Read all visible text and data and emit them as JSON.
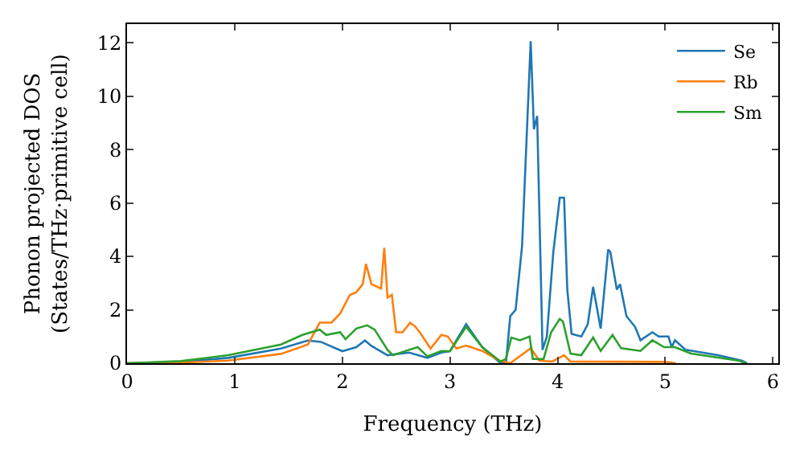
{
  "chart_data": {
    "type": "line",
    "xlabel": "Frequency (THz)",
    "ylabel": "Phonon projected DOS\n(States/THz·primitive cell)",
    "xlim": [
      0,
      6.05
    ],
    "ylim": [
      0,
      12.7
    ],
    "xticks": [
      0,
      1,
      2,
      3,
      4,
      5,
      6
    ],
    "yticks": [
      0,
      2,
      4,
      6,
      8,
      10,
      12
    ],
    "grid": false,
    "legend": "top right",
    "marker": "none",
    "line_style": "solid",
    "series": [
      {
        "name": "Se",
        "color": "#1f77b4",
        "x": [
          0,
          0.5,
          0.94,
          1.43,
          1.68,
          1.8,
          2.0,
          2.13,
          2.21,
          2.27,
          2.42,
          2.62,
          2.79,
          2.92,
          3.0,
          3.15,
          3.3,
          3.47,
          3.52,
          3.56,
          3.61,
          3.67,
          3.75,
          3.78,
          3.81,
          3.86,
          3.9,
          3.96,
          4.02,
          4.06,
          4.09,
          4.13,
          4.22,
          4.28,
          4.33,
          4.4,
          4.47,
          4.49,
          4.55,
          4.58,
          4.64,
          4.72,
          4.77,
          4.88,
          4.94,
          5.03,
          5.06,
          5.09,
          5.19,
          5.49,
          5.71,
          5.76
        ],
        "values": [
          0,
          0.05,
          0.2,
          0.55,
          0.85,
          0.8,
          0.45,
          0.6,
          0.85,
          0.65,
          0.3,
          0.4,
          0.2,
          0.4,
          0.45,
          1.46,
          0.6,
          0,
          0,
          1.76,
          2.0,
          4.4,
          12.06,
          8.76,
          9.26,
          0.5,
          1.0,
          4.16,
          6.2,
          6.2,
          2.76,
          1.1,
          1.0,
          1.46,
          2.86,
          1.3,
          4.26,
          4.16,
          2.76,
          2.96,
          1.76,
          1.36,
          0.86,
          1.16,
          1.0,
          1.0,
          0.6,
          0.86,
          0.5,
          0.3,
          0.1,
          0
        ]
      },
      {
        "name": "Rb",
        "color": "#ff7f0e",
        "x": [
          0,
          0.5,
          0.94,
          1.43,
          1.68,
          1.79,
          1.9,
          1.98,
          2.07,
          2.13,
          2.19,
          2.22,
          2.27,
          2.36,
          2.39,
          2.42,
          2.46,
          2.5,
          2.56,
          2.63,
          2.68,
          2.73,
          2.82,
          2.92,
          2.98,
          3.06,
          3.15,
          3.3,
          3.46,
          3.56,
          3.75,
          3.83,
          3.95,
          4.06,
          4.12,
          5.0,
          5.1
        ],
        "values": [
          0,
          0.02,
          0.1,
          0.35,
          0.7,
          1.52,
          1.52,
          1.86,
          2.56,
          2.66,
          2.96,
          3.72,
          2.96,
          2.8,
          4.32,
          2.46,
          2.56,
          1.16,
          1.16,
          1.52,
          1.36,
          1.1,
          0.55,
          1.06,
          1.0,
          0.55,
          0.66,
          0.46,
          0.1,
          0,
          0.56,
          0.1,
          0.06,
          0.3,
          0.06,
          0.05,
          0
        ]
      },
      {
        "name": "Sm",
        "color": "#2ca02c",
        "x": [
          0,
          0.5,
          0.94,
          1.43,
          1.63,
          1.79,
          1.85,
          1.98,
          2.03,
          2.13,
          2.23,
          2.3,
          2.42,
          2.47,
          2.62,
          2.7,
          2.79,
          2.92,
          3.0,
          3.15,
          3.3,
          3.47,
          3.52,
          3.57,
          3.65,
          3.74,
          3.77,
          3.87,
          3.94,
          4.02,
          4.05,
          4.12,
          4.22,
          4.33,
          4.4,
          4.51,
          4.59,
          4.77,
          4.88,
          4.99,
          5.09,
          5.24,
          5.68,
          5.75
        ],
        "values": [
          0,
          0.08,
          0.3,
          0.7,
          1.06,
          1.26,
          1.06,
          1.16,
          0.9,
          1.3,
          1.42,
          1.26,
          0.5,
          0.3,
          0.5,
          0.6,
          0.26,
          0.46,
          0.45,
          1.36,
          0.6,
          0.06,
          0.16,
          0.96,
          0.86,
          1.0,
          0.16,
          0.16,
          1.16,
          1.66,
          1.56,
          0.36,
          0.3,
          0.96,
          0.46,
          1.06,
          0.56,
          0.46,
          0.86,
          0.6,
          0.6,
          0.36,
          0.1,
          0
        ]
      }
    ]
  }
}
